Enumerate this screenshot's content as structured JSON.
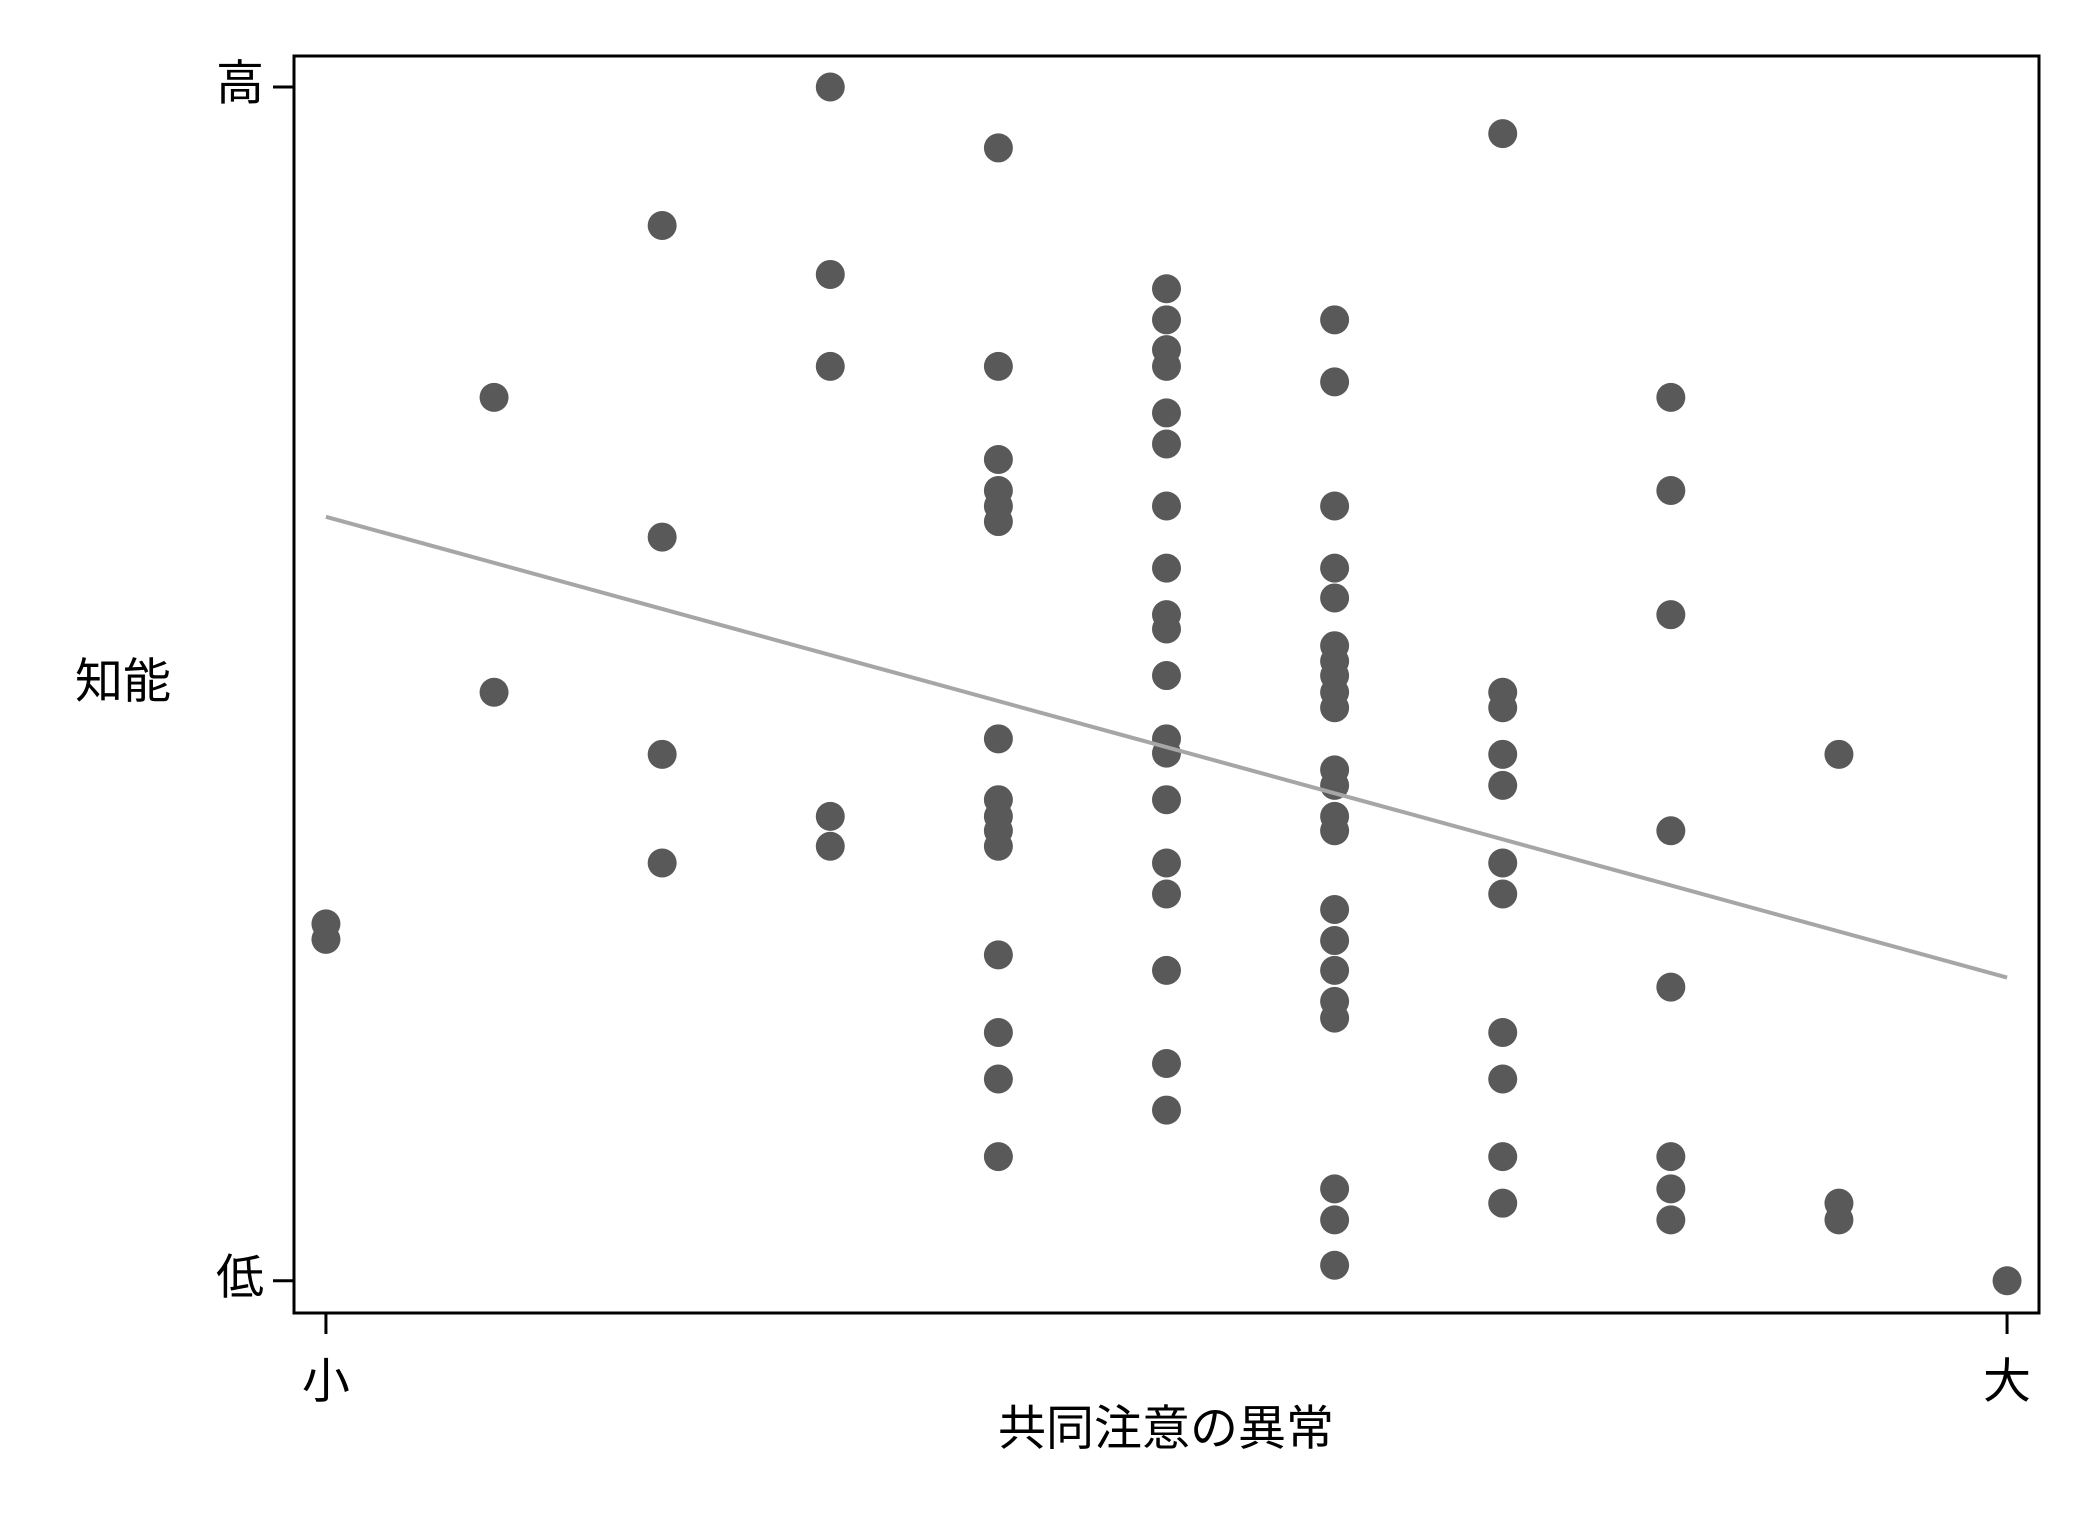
{
  "chart_data": {
    "type": "scatter",
    "x_label": "共同注意の異常",
    "y_label": "知能",
    "color": "#595959",
    "x": [
      0,
      0,
      1,
      1,
      2,
      2,
      2,
      2,
      3,
      3,
      3,
      3,
      3,
      4,
      4,
      4,
      4,
      4,
      4,
      4,
      4,
      4,
      4,
      4,
      4,
      4,
      4,
      4,
      5,
      5,
      5,
      5,
      5,
      5,
      5,
      5,
      5,
      5,
      5,
      5,
      5,
      5,
      5,
      5,
      5,
      5,
      5,
      6,
      6,
      6,
      6,
      6,
      6,
      6,
      6,
      6,
      6,
      6,
      6,
      6,
      6,
      6,
      6,
      6,
      6,
      6,
      6,
      6,
      6,
      7,
      7,
      7,
      7,
      7,
      7,
      7,
      7,
      7,
      7,
      7,
      8,
      8,
      8,
      8,
      8,
      8,
      8,
      8,
      9,
      9,
      9,
      10
    ],
    "values": [
      29.9,
      28.6,
      74.0,
      49.3,
      88.4,
      62.3,
      44.1,
      35.0,
      100,
      84.3,
      76.6,
      38.9,
      36.4,
      94.9,
      76.6,
      68.8,
      66.2,
      64.9,
      63.6,
      45.4,
      40.3,
      38.9,
      37.7,
      36.4,
      27.3,
      20.8,
      16.9,
      10.4,
      83.1,
      80.5,
      78.0,
      76.6,
      72.7,
      70.1,
      64.9,
      59.7,
      55.8,
      54.6,
      50.7,
      45.4,
      44.2,
      40.3,
      35.0,
      32.4,
      26.0,
      18.2,
      14.3,
      80.5,
      75.3,
      64.9,
      59.7,
      57.2,
      53.2,
      51.9,
      50.7,
      49.3,
      48.0,
      42.8,
      41.5,
      38.9,
      37.7,
      31.1,
      28.5,
      26.0,
      23.4,
      22.0,
      7.7,
      5.1,
      1.3,
      96.1,
      49.3,
      48.0,
      44.1,
      41.5,
      35.0,
      32.4,
      20.8,
      16.9,
      10.4,
      6.5,
      74.0,
      66.2,
      55.8,
      37.7,
      24.6,
      10.4,
      7.7,
      5.1,
      44.1,
      6.5,
      5.1,
      0
    ],
    "trend": {
      "x": [
        0,
        10
      ],
      "values": [
        64.0,
        25.4
      ],
      "color": "#a6a6a6"
    },
    "xlim": [
      -0.19,
      10.19
    ],
    "ylim": [
      -2.7,
      102.6
    ],
    "xticks": [
      {
        "value": 0,
        "label": "小"
      },
      {
        "value": 10,
        "label": "大"
      }
    ],
    "yticks": [
      {
        "value": 0,
        "label": "低"
      },
      {
        "value": 100,
        "label": "高"
      }
    ]
  }
}
